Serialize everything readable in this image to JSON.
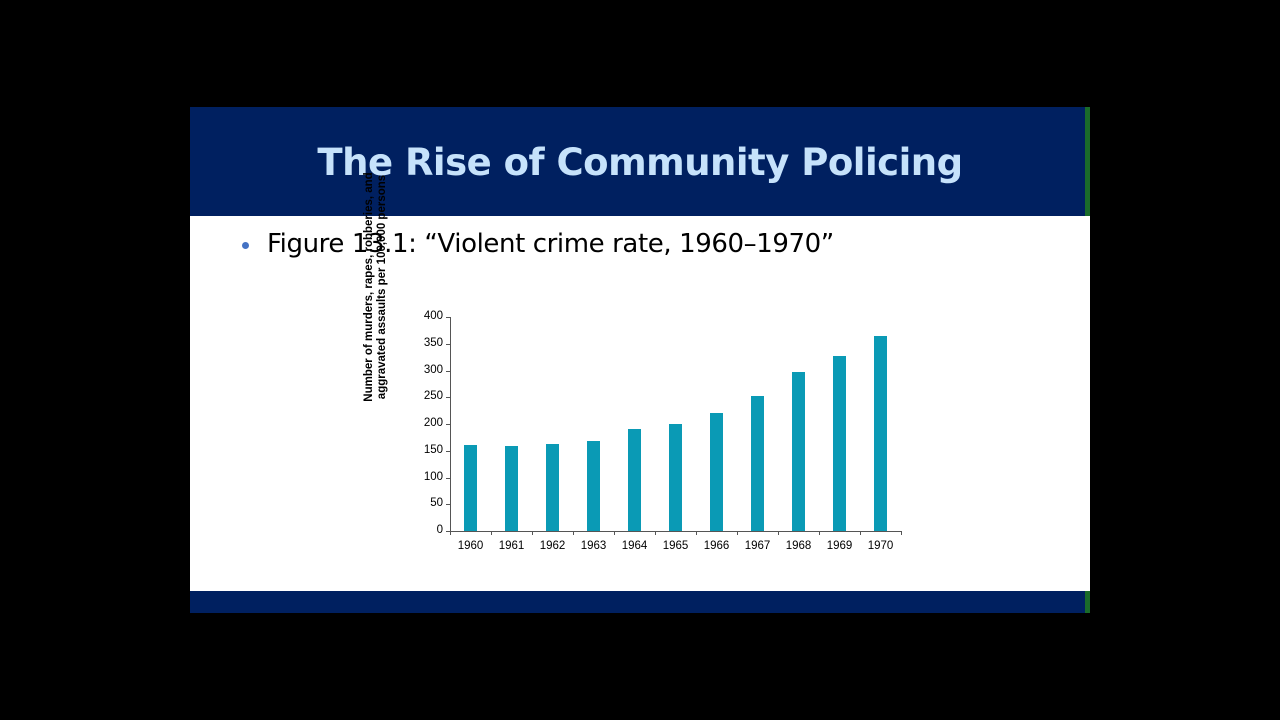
{
  "slide": {
    "title": "The Rise of Community Policing",
    "bullet": "Figure 13.1: “Violent crime rate, 1960–1970”",
    "colors": {
      "title_bar": "#002060",
      "title_text": "#c6e2fb",
      "accent_stripe": "#1a6b2a",
      "bullet_dot": "#4472c4",
      "bar": "#0a9ab5"
    }
  },
  "chart_data": {
    "type": "bar",
    "title": "Violent crime rate, 1960–1970",
    "xlabel": "",
    "ylabel": "Number of murders, rapes, robberies, and aggravated assaults per 100,000 persons",
    "ylabel_lines": [
      "Number of murders, rapes, robberies, and",
      "aggravated assaults per 100,000 persons"
    ],
    "categories": [
      "1960",
      "1961",
      "1962",
      "1963",
      "1964",
      "1965",
      "1966",
      "1967",
      "1968",
      "1969",
      "1970"
    ],
    "values": [
      160,
      158,
      162,
      168,
      190,
      200,
      220,
      253,
      298,
      328,
      364
    ],
    "ylim": [
      0,
      400
    ],
    "yticks": [
      "0",
      "50",
      "100",
      "150",
      "200",
      "250",
      "300",
      "350",
      "400"
    ],
    "grid": false,
    "legend": null
  }
}
